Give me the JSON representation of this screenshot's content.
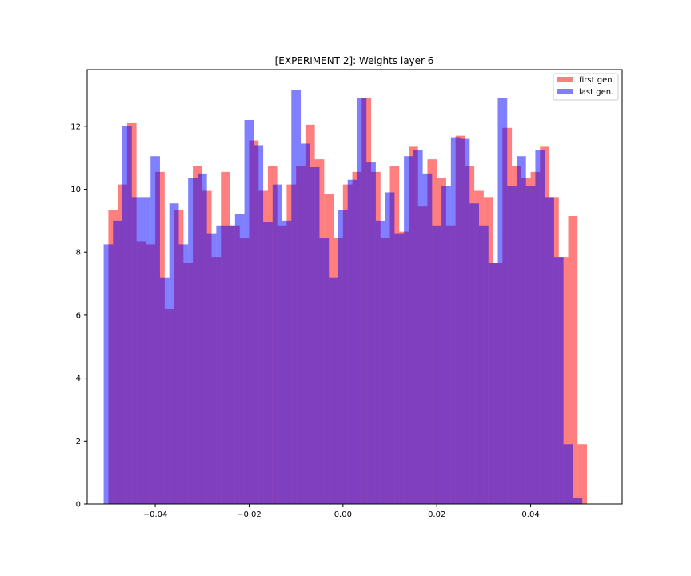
{
  "chart_data": {
    "type": "bar",
    "title": "[EXPERIMENT 2]: Weights layer 6",
    "xlabel": "",
    "ylabel": "",
    "xlim": [
      -0.0545,
      0.0595
    ],
    "ylim": [
      0,
      13.8
    ],
    "x_ticks": [
      -0.04,
      -0.02,
      0.0,
      0.02,
      0.04
    ],
    "x_tick_labels": [
      "−0.04",
      "−0.02",
      "0.00",
      "0.02",
      "0.04"
    ],
    "y_ticks": [
      0,
      2,
      4,
      6,
      8,
      10,
      12
    ],
    "y_tick_labels": [
      "0",
      "2",
      "4",
      "6",
      "8",
      "10",
      "12"
    ],
    "legend_position": "top-right",
    "series": [
      {
        "name": "first gen.",
        "color": "#ff0000",
        "opacity": 0.5,
        "bin_start": -0.05,
        "bin_width": 0.002,
        "values": [
          9.35,
          10.15,
          12.1,
          8.35,
          8.25,
          10.55,
          6.2,
          9.35,
          7.65,
          10.75,
          9.95,
          7.85,
          10.55,
          8.85,
          8.45,
          11.55,
          9.95,
          10.75,
          8.85,
          10.15,
          10.75,
          12.05,
          10.95,
          9.85,
          8.45,
          10.15,
          10.55,
          12.9,
          10.55,
          8.45,
          10.75,
          8.65,
          11.35,
          9.45,
          10.95,
          10.35,
          8.85,
          11.7,
          10.75,
          9.95,
          9.75,
          7.65,
          11.95,
          10.75,
          10.35,
          10.55,
          11.35,
          9.75,
          7.85,
          9.15,
          1.9
        ]
      },
      {
        "name": "last gen.",
        "color": "#0000ff",
        "opacity": 0.5,
        "bin_start": -0.051,
        "bin_width": 0.002,
        "values": [
          8.25,
          9.0,
          12.0,
          9.75,
          9.75,
          11.05,
          7.2,
          9.55,
          8.25,
          10.35,
          10.5,
          8.6,
          8.85,
          8.85,
          9.2,
          12.2,
          11.4,
          8.95,
          10.15,
          9.0,
          13.15,
          11.45,
          10.7,
          8.45,
          7.2,
          9.35,
          10.3,
          12.9,
          10.85,
          9.0,
          9.9,
          8.6,
          11.05,
          11.25,
          10.5,
          8.85,
          10.1,
          11.65,
          11.6,
          9.55,
          8.85,
          7.65,
          12.9,
          10.1,
          11.05,
          10.1,
          11.25,
          9.75,
          7.85,
          1.9,
          0.18
        ]
      }
    ]
  }
}
